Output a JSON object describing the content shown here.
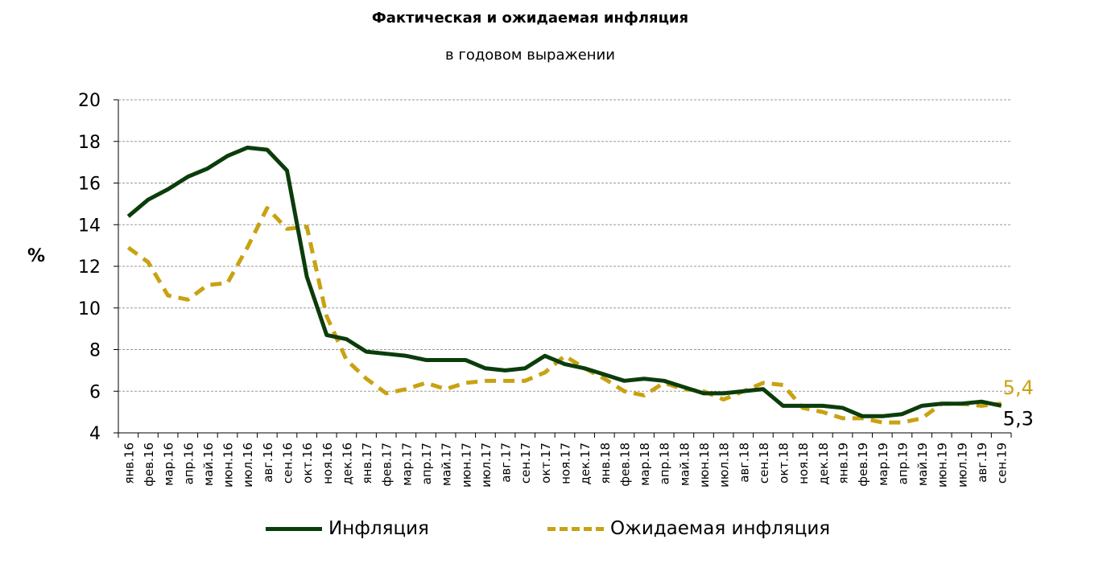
{
  "title": "Фактическая и ожидаемая инфляция",
  "subtitle": "в годовом выражении",
  "colors": {
    "inflation": "#0b3d0b",
    "expected": "#c9a212",
    "grid": "#999999"
  },
  "chart_data": {
    "type": "line",
    "ylabel": "%",
    "ylim": [
      4,
      20
    ],
    "yticks": [
      4,
      6,
      8,
      10,
      12,
      14,
      16,
      18,
      20
    ],
    "grid": true,
    "legend_position": "bottom",
    "categories": [
      "янв.16",
      "фев.16",
      "мар.16",
      "апр.16",
      "май.16",
      "июн.16",
      "июл.16",
      "авг.16",
      "сен.16",
      "окт.16",
      "ноя.16",
      "дек.16",
      "янв.17",
      "фев.17",
      "мар.17",
      "апр.17",
      "май.17",
      "июн.17",
      "июл.17",
      "авг.17",
      "сен.17",
      "окт.17",
      "ноя.17",
      "дек.17",
      "янв.18",
      "фев.18",
      "мар.18",
      "апр.18",
      "май.18",
      "июн.18",
      "июл.18",
      "авг.18",
      "сен.18",
      "окт.18",
      "ноя.18",
      "дек.18",
      "янв.19",
      "фев.19",
      "мар.19",
      "апр.19",
      "май.19",
      "июн.19",
      "июл.19",
      "авг.19",
      "сен.19"
    ],
    "series": [
      {
        "name": "Инфляция",
        "style": "solid",
        "values": [
          14.4,
          15.2,
          15.7,
          16.3,
          16.7,
          17.3,
          17.7,
          17.6,
          16.6,
          11.5,
          8.7,
          8.5,
          7.9,
          7.8,
          7.7,
          7.5,
          7.5,
          7.5,
          7.1,
          7.0,
          7.1,
          7.7,
          7.3,
          7.1,
          6.8,
          6.5,
          6.6,
          6.5,
          6.2,
          5.9,
          5.9,
          6.0,
          6.1,
          5.3,
          5.3,
          5.3,
          5.2,
          4.8,
          4.8,
          4.9,
          5.3,
          5.4,
          5.4,
          5.5,
          5.3
        ],
        "end_label": "5,3"
      },
      {
        "name": "Ожидаемая инфляция",
        "style": "dashed",
        "values": [
          12.9,
          12.2,
          10.6,
          10.4,
          11.1,
          11.2,
          12.9,
          14.8,
          13.8,
          13.9,
          9.6,
          7.5,
          6.6,
          5.9,
          6.1,
          6.4,
          6.1,
          6.4,
          6.5,
          6.5,
          6.5,
          6.9,
          7.7,
          7.1,
          6.6,
          6.0,
          5.8,
          6.4,
          6.1,
          6.0,
          5.6,
          6.0,
          6.4,
          6.3,
          5.2,
          5.0,
          4.7,
          4.7,
          4.5,
          4.5,
          4.7,
          5.4,
          5.4,
          5.3,
          5.4
        ],
        "end_label": "5,4"
      }
    ]
  }
}
